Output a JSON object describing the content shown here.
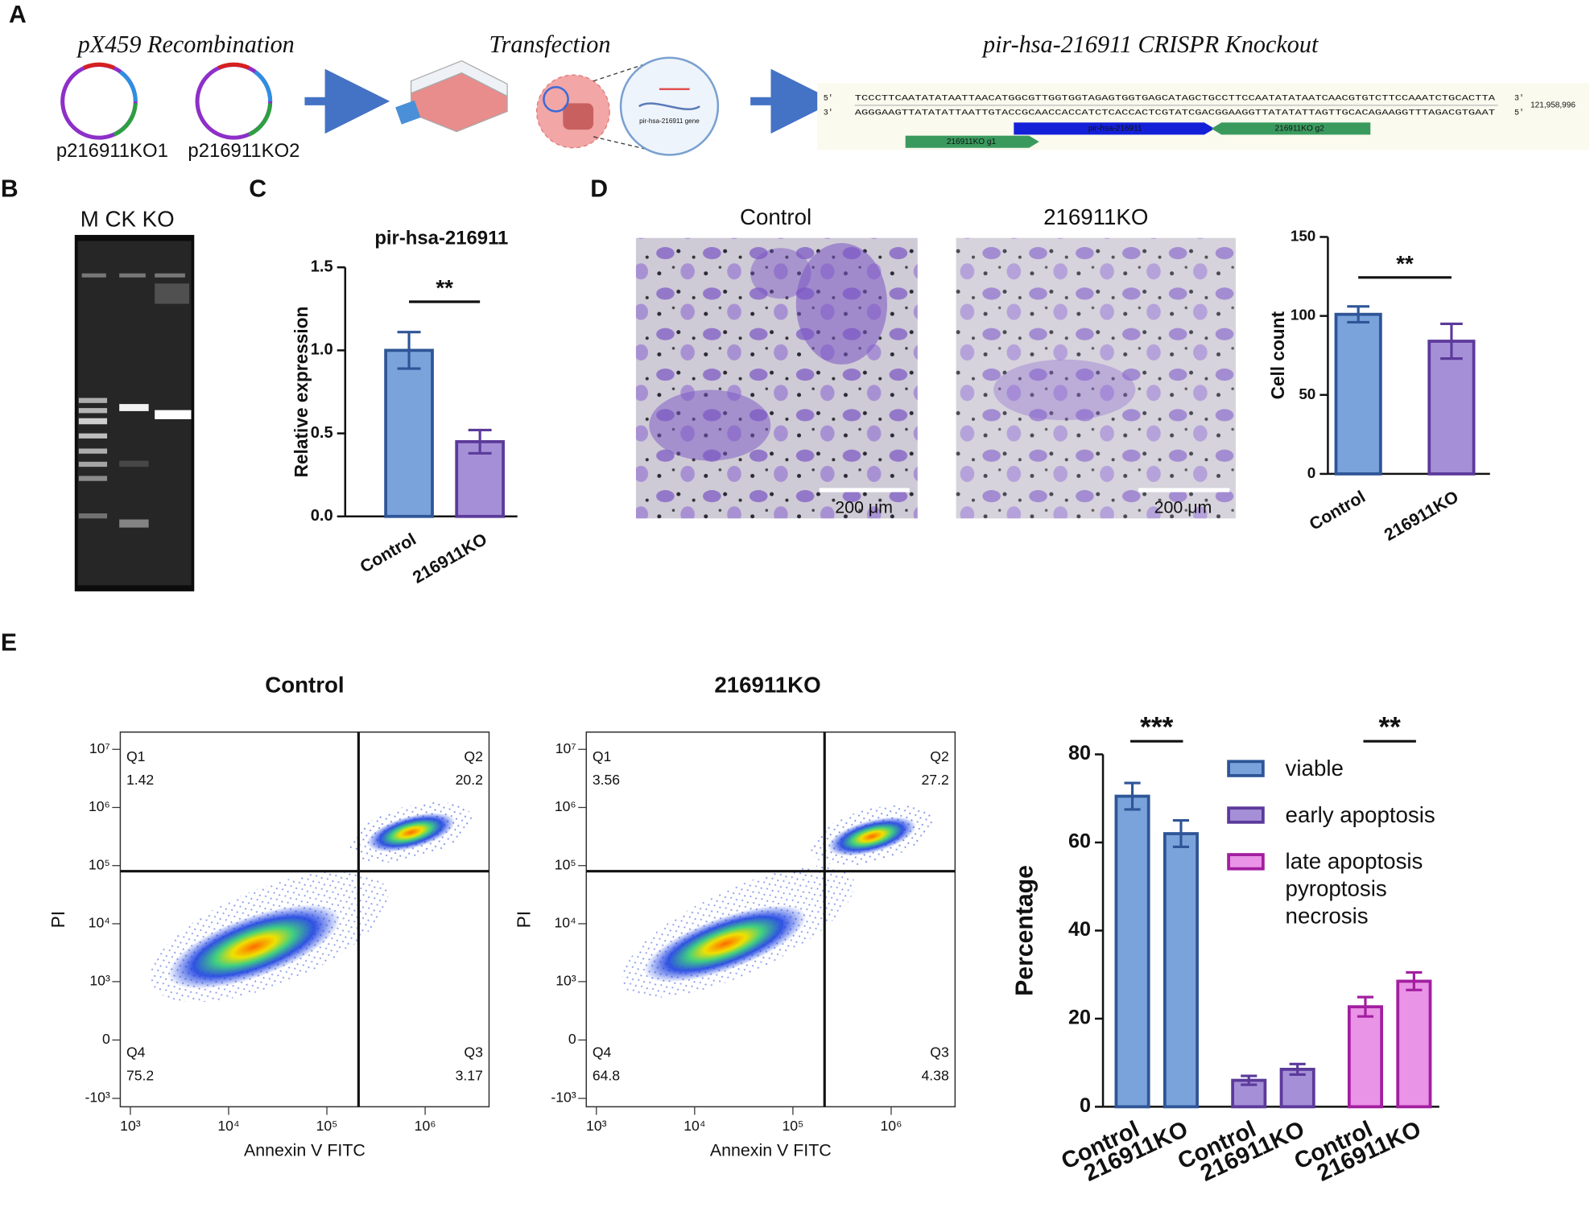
{
  "panel_letters": [
    "A",
    "B",
    "C",
    "D",
    "E"
  ],
  "panel_a": {
    "steps": [
      "pX459 Recombination",
      "Transfection",
      "pir-hsa-216911 CRISPR Knockout"
    ],
    "plasmids": [
      "p216911KO1",
      "p216911KO2"
    ],
    "gene_label": "pir-hsa-216911 gene",
    "sequence": {
      "strand_top": "TCCCTTCAATATATAATTAACATGGCGTTGGTGGTAGAGTGGTGAGCATAGCTGCCTTCCAATATATAATCAACGTGTCTTCCAAATCTGCACTTA",
      "strand_bottom": "AGGGAAGTTATATATTAATTGTACCGCAACCACCATCTCACCACTCGTATCGACGGAAGGTTATATATTAGTTGCACAGAAGGTTTAGACGTGAAT",
      "end_labels": [
        "5'",
        "3'"
      ],
      "coordinate": "121,958,996",
      "features": [
        "216911KO g1",
        "pir-hsa-216911",
        "216911KO g2"
      ]
    }
  },
  "panel_b": {
    "lanes": "M CK KO"
  },
  "panel_d": {
    "images": [
      "Control",
      "216911KO"
    ],
    "scale_bar": "200 μm"
  },
  "chart_data": [
    {
      "type": "bar",
      "title": "pir-hsa-216911",
      "ylabel": "Relative expression",
      "categories": [
        "Control",
        "216911KO"
      ],
      "values": [
        1.0,
        0.45
      ],
      "errors": [
        0.11,
        0.07
      ],
      "colors": [
        "#7ba3db",
        "#a590d8"
      ],
      "edge_colors": [
        "#2e5597",
        "#5b3a9a"
      ],
      "ylim": [
        0,
        1.5
      ],
      "yticks": [
        {
          "value": 0,
          "label": "0.0"
        },
        0.5,
        {
          "value": 1,
          "label": "1.0"
        },
        1.5
      ],
      "significance": "**"
    },
    {
      "type": "bar",
      "ylabel": "Cell count",
      "categories": [
        "Control",
        "216911KO"
      ],
      "values": [
        101,
        84
      ],
      "errors": [
        5,
        11
      ],
      "colors": [
        "#7ba3db",
        "#a590d8"
      ],
      "edge_colors": [
        "#2e5597",
        "#5b3a9a"
      ],
      "ylim": [
        0,
        150
      ],
      "yticks": [
        0,
        50,
        100,
        150
      ],
      "significance": "**"
    },
    {
      "type": "grouped_bar",
      "ylabel": "Percentage",
      "categories": [
        "Control",
        "216911KO"
      ],
      "series": [
        {
          "name": "viable",
          "color": "#7ba3db",
          "edge_color": "#2e5597",
          "values": [
            70.5,
            62
          ],
          "errors": [
            3,
            3
          ],
          "significance": "***"
        },
        {
          "name": "early apoptosis",
          "color": "#a590d8",
          "edge_color": "#5b3a9a",
          "values": [
            6,
            8.5
          ],
          "errors": [
            1,
            1.2
          ]
        },
        {
          "name": "late apoptosis pyroptosis necrosis",
          "color": "#e994e6",
          "edge_color": "#a21ea0",
          "values": [
            22.7,
            28.5
          ],
          "errors": [
            2.2,
            2
          ],
          "significance": "**"
        }
      ],
      "ylim": [
        0,
        80
      ],
      "yticks": [
        0,
        20,
        40,
        60,
        80
      ],
      "legend": "upper right"
    }
  ],
  "flow_cytometry": {
    "xlabel": "Annexin V FITC",
    "ylabel": "PI",
    "xscale": "log",
    "yscale": "biexponential",
    "xlim": [
      790,
      4470000
    ],
    "ylim": [
      -1400,
      19800000
    ],
    "xticks": [
      {
        "value": 1000,
        "label": "10³"
      },
      {
        "value": 10000,
        "label": "10⁴"
      },
      {
        "value": 100000,
        "label": "10⁵"
      },
      {
        "value": 1000000,
        "label": "10⁶"
      }
    ],
    "yticks": [
      {
        "value": -1000,
        "label": "-10³"
      },
      0,
      {
        "value": 1000,
        "label": "10³"
      },
      {
        "value": 10000,
        "label": "10⁴"
      },
      {
        "value": 100000,
        "label": "10⁵"
      },
      {
        "value": 1000000,
        "label": "10⁶"
      },
      {
        "value": 10000000,
        "label": "10⁷"
      }
    ],
    "gate": [
      210000,
      80000
    ],
    "plots": [
      {
        "title": "Control",
        "quadrants": [
          {
            "name": "Q1",
            "value": 1.42
          },
          {
            "name": "Q2",
            "value": 20.2
          },
          {
            "name": "Q3",
            "value": 3.17
          },
          {
            "name": "Q4",
            "value": 75.2
          }
        ]
      },
      {
        "title": "216911KO",
        "quadrants": [
          {
            "name": "Q1",
            "value": 3.56
          },
          {
            "name": "Q2",
            "value": 27.2
          },
          {
            "name": "Q3",
            "value": 4.38
          },
          {
            "name": "Q4",
            "value": 64.8
          }
        ]
      }
    ]
  }
}
